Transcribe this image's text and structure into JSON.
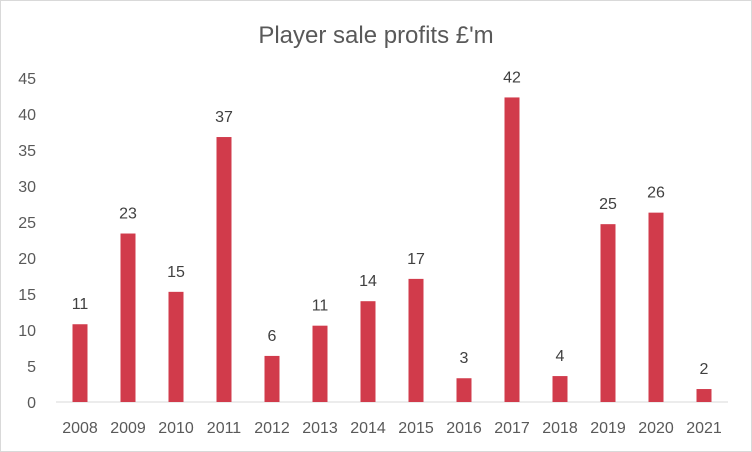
{
  "chart_data": {
    "type": "bar",
    "title": "Player sale profits £'m",
    "xlabel": "",
    "ylabel": "",
    "categories": [
      "2008",
      "2009",
      "2010",
      "2011",
      "2012",
      "2013",
      "2014",
      "2015",
      "2016",
      "2017",
      "2018",
      "2019",
      "2020",
      "2021"
    ],
    "values": [
      10.8,
      23.4,
      15.3,
      36.8,
      6.4,
      10.6,
      14.0,
      17.1,
      3.3,
      42.3,
      3.6,
      24.7,
      26.3,
      1.8
    ],
    "data_labels": [
      "11",
      "23",
      "15",
      "37",
      "6",
      "11",
      "14",
      "17",
      "3",
      "42",
      "4",
      "25",
      "26",
      "2"
    ],
    "ylim": [
      0,
      45
    ],
    "yticks": [
      "0",
      "5",
      "10",
      "15",
      "20",
      "25",
      "30",
      "35",
      "40",
      "45"
    ],
    "grid": false,
    "legend": "none",
    "bar_color": "#d13b4b"
  }
}
